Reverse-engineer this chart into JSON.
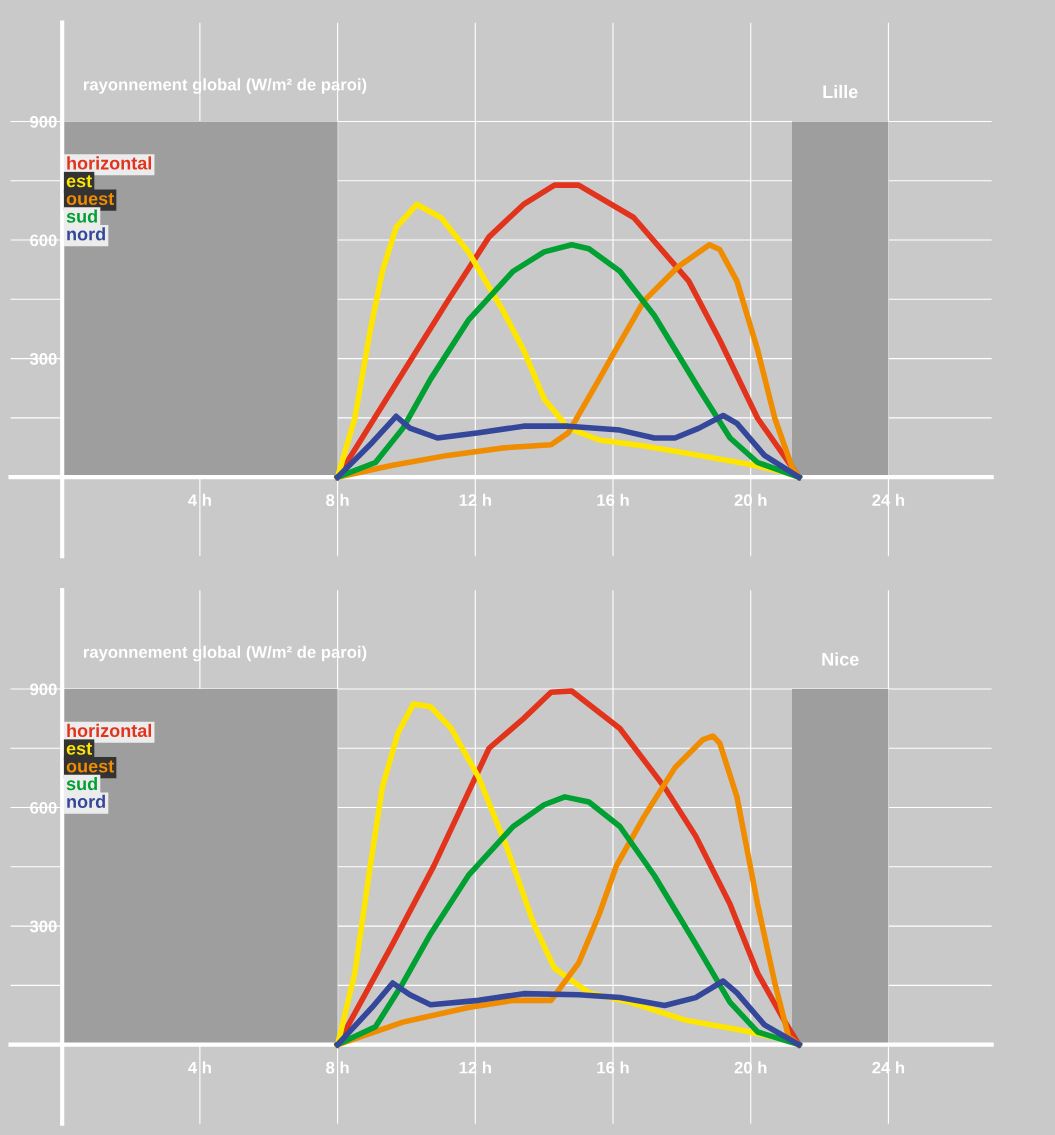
{
  "chart_data": [
    {
      "type": "line",
      "title": "Lille",
      "ylabel": "rayonnement global (W/m² de paroi)",
      "xlim": [
        -1.5,
        27
      ],
      "ylim": [
        -200,
        1150
      ],
      "xticks": [
        {
          "value": 4,
          "label": "4 h"
        },
        {
          "value": 8,
          "label": "8 h"
        },
        {
          "value": 12,
          "label": "12 h"
        },
        {
          "value": 16,
          "label": "16 h"
        },
        {
          "value": 20,
          "label": "20 h"
        },
        {
          "value": 24,
          "label": "24 h"
        }
      ],
      "yticks": [
        {
          "value": 150,
          "label": null
        },
        300,
        {
          "value": 450,
          "label": null
        },
        600,
        {
          "value": 750,
          "label": null
        },
        900
      ],
      "grid": true,
      "legend": "top left",
      "marker": "none",
      "line_style": "solid",
      "bands": [
        {
          "axis": "x",
          "from": 0,
          "to": 8,
          "color": "#9d9e9d"
        },
        {
          "axis": "x",
          "from": 21.2,
          "to": 24,
          "color": "#9d9e9d"
        }
      ],
      "series": [
        {
          "name": "horizontal",
          "color": "#e2341d",
          "x": [
            8,
            9.6,
            11.2,
            12.4,
            13.4,
            14.3,
            15,
            16.6,
            18.2,
            19.1,
            20.2,
            21,
            21.4
          ],
          "values": [
            0,
            223,
            446,
            608,
            690,
            739,
            739,
            657,
            496,
            347,
            149,
            50,
            0
          ]
        },
        {
          "name": "est",
          "color": "#ffe600",
          "x": [
            8,
            8.5,
            8.95,
            9.3,
            9.7,
            10.3,
            11,
            11.8,
            12.8,
            13.4,
            14,
            14.7,
            15.6,
            16.9,
            18.5,
            20.1,
            21,
            21.4
          ],
          "values": [
            0,
            149,
            372,
            521,
            632,
            690,
            657,
            570,
            422,
            322,
            198,
            124,
            94,
            79,
            55,
            30,
            12,
            0
          ]
        },
        {
          "name": "ouest",
          "color": "#f08c00",
          "x": [
            8,
            9.6,
            11.2,
            12.8,
            14.2,
            14.7,
            15.6,
            16,
            16.9,
            17.9,
            18.8,
            19.1,
            19.6,
            20.2,
            20.7,
            21.2,
            21.4
          ],
          "values": [
            0,
            30,
            55,
            74,
            82,
            112,
            248,
            310,
            446,
            533,
            588,
            576,
            496,
            322,
            149,
            25,
            0
          ]
        },
        {
          "name": "sud",
          "color": "#00a033",
          "x": [
            8,
            9.1,
            9.9,
            10.7,
            11.8,
            13.1,
            14,
            14.8,
            15.3,
            16.2,
            17.2,
            18.5,
            19.4,
            20.2,
            21.4
          ],
          "values": [
            0,
            37,
            124,
            248,
            397,
            521,
            570,
            588,
            578,
            521,
            409,
            223,
            99,
            37,
            0
          ]
        },
        {
          "name": "nord",
          "color": "#35479b",
          "x": [
            8,
            9,
            9.7,
            10.1,
            10.9,
            12.1,
            13.4,
            14.7,
            16.2,
            17.2,
            17.8,
            18.5,
            19.2,
            19.6,
            20.4,
            21.4
          ],
          "values": [
            0,
            87,
            154,
            124,
            99,
            112,
            129,
            129,
            119,
            99,
            99,
            124,
            156,
            136,
            55,
            0
          ]
        }
      ]
    },
    {
      "type": "line",
      "title": "Nice",
      "ylabel": "rayonnement global (W/m² de paroi)",
      "xlim": [
        -1.5,
        27
      ],
      "ylim": [
        -200,
        1150
      ],
      "xticks": [
        {
          "value": 4,
          "label": "4 h"
        },
        {
          "value": 8,
          "label": "8 h"
        },
        {
          "value": 12,
          "label": "12 h"
        },
        {
          "value": 16,
          "label": "16 h"
        },
        {
          "value": 20,
          "label": "20 h"
        },
        {
          "value": 24,
          "label": "24 h"
        }
      ],
      "yticks": [
        {
          "value": 150,
          "label": null
        },
        300,
        {
          "value": 450,
          "label": null
        },
        600,
        {
          "value": 750,
          "label": null
        },
        900
      ],
      "grid": true,
      "legend": "top left",
      "marker": "none",
      "line_style": "solid",
      "bands": [
        {
          "axis": "x",
          "from": 0,
          "to": 8,
          "color": "#9d9e9d"
        },
        {
          "axis": "x",
          "from": 21.2,
          "to": 24,
          "color": "#9d9e9d"
        }
      ],
      "series": [
        {
          "name": "horizontal",
          "color": "#e2341d",
          "x": [
            8,
            9.6,
            10.8,
            12.4,
            13.4,
            14.2,
            14.8,
            16.2,
            17.5,
            18.4,
            19.4,
            20.2,
            21,
            21.4
          ],
          "values": [
            0,
            255,
            453,
            750,
            825,
            892,
            895,
            800,
            651,
            528,
            355,
            181,
            57,
            0
          ]
        },
        {
          "name": "est",
          "color": "#ffe600",
          "x": [
            8,
            8.5,
            8.95,
            9.3,
            9.75,
            10.2,
            10.7,
            11.3,
            12.1,
            12.9,
            13.7,
            14.3,
            15.3,
            16.5,
            18.1,
            19.7,
            21,
            21.4
          ],
          "values": [
            0,
            181,
            453,
            651,
            788,
            862,
            855,
            800,
            676,
            503,
            305,
            193,
            131,
            107,
            62,
            37,
            12,
            0
          ]
        },
        {
          "name": "ouest",
          "color": "#f08c00",
          "x": [
            8,
            9.9,
            11.8,
            13.1,
            14.2,
            15,
            15.6,
            16.1,
            16.9,
            17.8,
            18.6,
            18.9,
            19.1,
            19.6,
            20.2,
            20.7,
            21.1,
            21.4
          ],
          "values": [
            0,
            57,
            94,
            112,
            112,
            206,
            330,
            453,
            577,
            701,
            771,
            781,
            763,
            627,
            355,
            156,
            20,
            0
          ]
        },
        {
          "name": "sud",
          "color": "#00a033",
          "x": [
            8,
            9.1,
            9.9,
            10.7,
            11.8,
            13.1,
            14,
            14.6,
            15.3,
            16.2,
            17.2,
            18.4,
            19.4,
            20.2,
            21.4
          ],
          "values": [
            0,
            45,
            156,
            280,
            428,
            552,
            607,
            627,
            614,
            552,
            428,
            255,
            107,
            32,
            0
          ]
        },
        {
          "name": "nord",
          "color": "#35479b",
          "x": [
            8,
            9,
            9.6,
            10.1,
            10.7,
            12.1,
            13.4,
            15,
            16.2,
            17.5,
            18.4,
            19.2,
            19.6,
            20.4,
            21.4
          ],
          "values": [
            0,
            94,
            156,
            126,
            101,
            112,
            129,
            126,
            119,
            99,
            119,
            161,
            131,
            50,
            0
          ]
        }
      ]
    }
  ]
}
